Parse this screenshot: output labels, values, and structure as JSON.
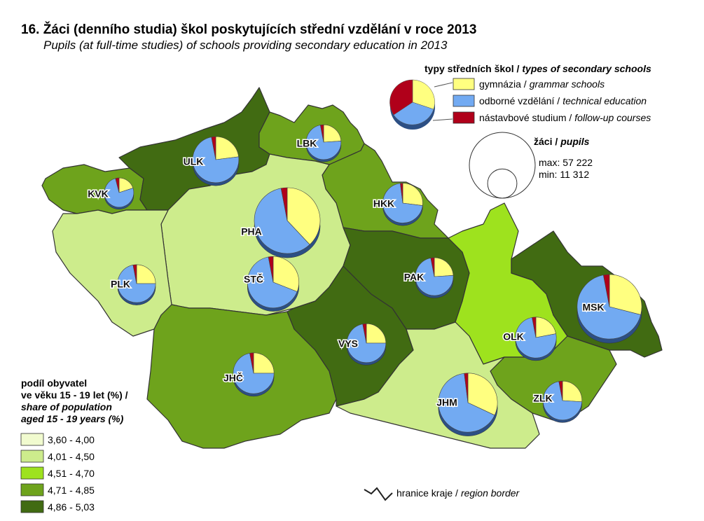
{
  "title": "16. Žáci (denního studia) škol poskytujících střední vzdělání v roce 2013",
  "subtitle": "Pupils (at full-time studies) of schools providing secondary education in 2013",
  "pie_legend": {
    "title": {
      "cz": "typy středních škol /",
      "en": "types of secondary schools"
    },
    "items": [
      {
        "cz": "gymnázia /",
        "en": "grammar schools",
        "color": "#ffff80"
      },
      {
        "cz": "odborné vzdělání /",
        "en": "technical education",
        "color": "#72aaf2"
      },
      {
        "cz": "nástavbové studium /",
        "en": "follow-up courses",
        "color": "#b0001a"
      }
    ]
  },
  "size_legend": {
    "title": {
      "cz": "žáci /",
      "en": "pupils"
    },
    "max": {
      "value": 57222,
      "label": "max: 57 222"
    },
    "min": {
      "value": 11312,
      "label": "min: 11 312"
    }
  },
  "class_legend": {
    "title": [
      "podíl obyvatel",
      "ve věku 15 - 19 let (%) /",
      "share of population",
      "aged 15 - 19 years (%)"
    ],
    "classes": [
      {
        "label": "3,60 - 4,00",
        "color": "#f1fbcf"
      },
      {
        "label": "4,01 - 4,50",
        "color": "#cdec8c"
      },
      {
        "label": "4,51 - 4,70",
        "color": "#9ee21e"
      },
      {
        "label": "4,71 - 4,85",
        "color": "#6ea31c"
      },
      {
        "label": "4,86 - 5,03",
        "color": "#416b12"
      }
    ]
  },
  "border_legend": {
    "cz": "hranice kraje /",
    "en": "region border"
  },
  "regions": [
    {
      "code": "KVK",
      "color": "#6ea31c",
      "pupils": 11312,
      "values": [
        20,
        76,
        4
      ]
    },
    {
      "code": "ULK",
      "color": "#416b12",
      "pupils": 28000,
      "values": [
        23,
        74,
        3
      ]
    },
    {
      "code": "LBK",
      "color": "#6ea31c",
      "pupils": 16000,
      "values": [
        24,
        73,
        3
      ]
    },
    {
      "code": "HKK",
      "color": "#6ea31c",
      "pupils": 21000,
      "values": [
        27,
        71,
        2
      ]
    },
    {
      "code": "PHA",
      "color": "#f1fbcf",
      "pupils": 57222,
      "values": [
        38,
        59,
        3
      ]
    },
    {
      "code": "STČ",
      "color": "#cdec8c",
      "pupils": 35000,
      "values": [
        31,
        66,
        3
      ]
    },
    {
      "code": "PLK",
      "color": "#cdec8c",
      "pupils": 19000,
      "values": [
        25,
        72,
        3
      ]
    },
    {
      "code": "JHČ",
      "color": "#6ea31c",
      "pupils": 22000,
      "values": [
        25,
        72,
        3
      ]
    },
    {
      "code": "VYS",
      "color": "#416b12",
      "pupils": 20000,
      "values": [
        25,
        72,
        3
      ]
    },
    {
      "code": "PAK",
      "color": "#416b12",
      "pupils": 19000,
      "values": [
        24,
        73,
        3
      ]
    },
    {
      "code": "OLK",
      "color": "#9ee21e",
      "pupils": 22000,
      "values": [
        22,
        75,
        3
      ]
    },
    {
      "code": "MSK",
      "color": "#416b12",
      "pupils": 55000,
      "values": [
        29,
        68,
        3
      ]
    },
    {
      "code": "ZLK",
      "color": "#6ea31c",
      "pupils": 20000,
      "values": [
        26,
        71,
        3
      ]
    },
    {
      "code": "JHM",
      "color": "#cdec8c",
      "pupils": 46000,
      "values": [
        32,
        66,
        2
      ]
    }
  ]
}
